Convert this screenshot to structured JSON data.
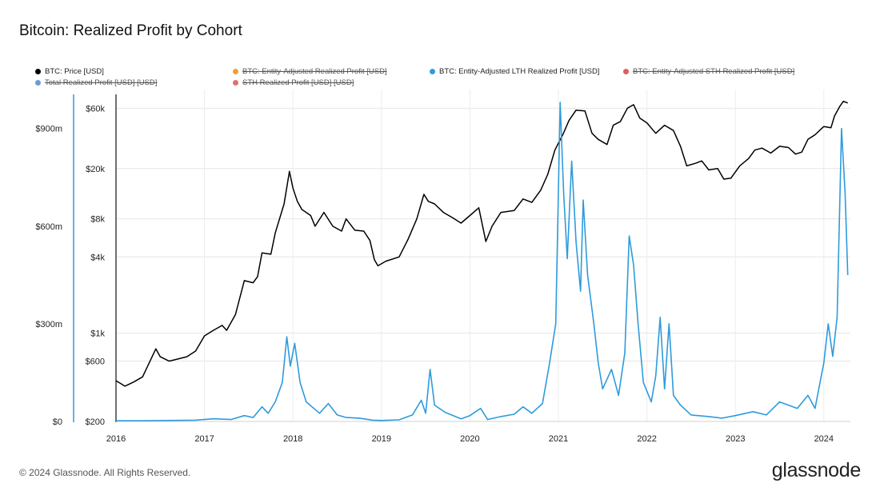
{
  "title": "Bitcoin: Realized Profit by Cohort",
  "footer": "© 2024 Glassnode. All Rights Reserved.",
  "brand": "glassnode",
  "legend": [
    {
      "label": "BTC: Price [USD]",
      "color": "#000000",
      "struck": false
    },
    {
      "label": "BTC: Entity-Adjusted Realized Profit [USD]",
      "color": "#f0a030",
      "struck": true
    },
    {
      "label": "BTC: Entity-Adjusted LTH Realized Profit [USD]",
      "color": "#2e9bdc",
      "struck": false
    },
    {
      "label": "BTC: Entity-Adjusted STH Realized Profit [USD]",
      "color": "#e05c5c",
      "struck": true
    },
    {
      "label": "Total Realized Profit [USD] [USD]",
      "color": "#6a9bd8",
      "struck": true
    },
    {
      "label": "STH Realized Profit [USD] [USD]",
      "color": "#e07070",
      "struck": true
    }
  ],
  "chart_data": {
    "type": "line",
    "title": "Bitcoin: Realized Profit by Cohort",
    "x_ticks": [
      "2016",
      "2017",
      "2018",
      "2019",
      "2020",
      "2021",
      "2022",
      "2023",
      "2024"
    ],
    "x_range": [
      2016.0,
      2024.3
    ],
    "left_axis": {
      "ticks": [
        "$0",
        "$300m",
        "$600m",
        "$900m"
      ],
      "tick_values": [
        0,
        300000000,
        600000000,
        900000000
      ],
      "range": [
        0,
        1000000000
      ]
    },
    "right_axis": {
      "scale": "log",
      "ticks": [
        "$200",
        "$600",
        "$1k",
        "$4k",
        "$8k",
        "$20k",
        "$60k"
      ],
      "tick_values": [
        200,
        600,
        1000,
        4000,
        8000,
        20000,
        60000
      ],
      "range": [
        200,
        75000
      ]
    },
    "grid": true,
    "legend_position": "top",
    "series": [
      {
        "name": "BTC: Price [USD]",
        "color": "#000000",
        "axis": "right",
        "points": [
          [
            2016.0,
            420
          ],
          [
            2016.05,
            400
          ],
          [
            2016.1,
            380
          ],
          [
            2016.2,
            410
          ],
          [
            2016.3,
            450
          ],
          [
            2016.45,
            750
          ],
          [
            2016.5,
            650
          ],
          [
            2016.6,
            600
          ],
          [
            2016.8,
            650
          ],
          [
            2016.9,
            720
          ],
          [
            2017.0,
            950
          ],
          [
            2017.1,
            1050
          ],
          [
            2017.2,
            1150
          ],
          [
            2017.25,
            1050
          ],
          [
            2017.35,
            1400
          ],
          [
            2017.45,
            2600
          ],
          [
            2017.55,
            2500
          ],
          [
            2017.6,
            2800
          ],
          [
            2017.65,
            4300
          ],
          [
            2017.75,
            4200
          ],
          [
            2017.8,
            6200
          ],
          [
            2017.9,
            10500
          ],
          [
            2017.96,
            19000
          ],
          [
            2018.0,
            14000
          ],
          [
            2018.05,
            11000
          ],
          [
            2018.1,
            9500
          ],
          [
            2018.2,
            8500
          ],
          [
            2018.25,
            7000
          ],
          [
            2018.35,
            9000
          ],
          [
            2018.45,
            7000
          ],
          [
            2018.55,
            6400
          ],
          [
            2018.6,
            8000
          ],
          [
            2018.7,
            6500
          ],
          [
            2018.8,
            6400
          ],
          [
            2018.87,
            5400
          ],
          [
            2018.92,
            3800
          ],
          [
            2018.96,
            3400
          ],
          [
            2019.05,
            3700
          ],
          [
            2019.2,
            4000
          ],
          [
            2019.3,
            5500
          ],
          [
            2019.4,
            8000
          ],
          [
            2019.48,
            12500
          ],
          [
            2019.53,
            11000
          ],
          [
            2019.6,
            10500
          ],
          [
            2019.7,
            9000
          ],
          [
            2019.8,
            8200
          ],
          [
            2019.9,
            7400
          ],
          [
            2020.0,
            8500
          ],
          [
            2020.1,
            9800
          ],
          [
            2020.18,
            5300
          ],
          [
            2020.25,
            7000
          ],
          [
            2020.35,
            9000
          ],
          [
            2020.5,
            9300
          ],
          [
            2020.6,
            11500
          ],
          [
            2020.7,
            10800
          ],
          [
            2020.8,
            13500
          ],
          [
            2020.88,
            18000
          ],
          [
            2020.96,
            28000
          ],
          [
            2021.05,
            37000
          ],
          [
            2021.12,
            48000
          ],
          [
            2021.2,
            58000
          ],
          [
            2021.3,
            57000
          ],
          [
            2021.38,
            38000
          ],
          [
            2021.45,
            34000
          ],
          [
            2021.55,
            31000
          ],
          [
            2021.62,
            44000
          ],
          [
            2021.7,
            47000
          ],
          [
            2021.78,
            60000
          ],
          [
            2021.85,
            64000
          ],
          [
            2021.92,
            50000
          ],
          [
            2022.0,
            46000
          ],
          [
            2022.1,
            38000
          ],
          [
            2022.2,
            44000
          ],
          [
            2022.3,
            40000
          ],
          [
            2022.38,
            30000
          ],
          [
            2022.45,
            21000
          ],
          [
            2022.55,
            22000
          ],
          [
            2022.62,
            23000
          ],
          [
            2022.7,
            19500
          ],
          [
            2022.8,
            20000
          ],
          [
            2022.87,
            16500
          ],
          [
            2022.95,
            16800
          ],
          [
            2023.05,
            21000
          ],
          [
            2023.15,
            24000
          ],
          [
            2023.22,
            28000
          ],
          [
            2023.3,
            29000
          ],
          [
            2023.4,
            26500
          ],
          [
            2023.5,
            30000
          ],
          [
            2023.6,
            29300
          ],
          [
            2023.68,
            26000
          ],
          [
            2023.75,
            27000
          ],
          [
            2023.82,
            34000
          ],
          [
            2023.9,
            37000
          ],
          [
            2024.0,
            43000
          ],
          [
            2024.08,
            42000
          ],
          [
            2024.12,
            52000
          ],
          [
            2024.18,
            62000
          ],
          [
            2024.22,
            68000
          ],
          [
            2024.27,
            66000
          ]
        ]
      },
      {
        "name": "BTC: Entity-Adjusted LTH Realized Profit [USD]",
        "color": "#2e9bdc",
        "axis": "left",
        "points": [
          [
            2016.0,
            2000000
          ],
          [
            2016.3,
            2000000
          ],
          [
            2016.6,
            3000000
          ],
          [
            2016.9,
            4000000
          ],
          [
            2017.1,
            8000000
          ],
          [
            2017.3,
            6000000
          ],
          [
            2017.45,
            18000000
          ],
          [
            2017.55,
            12000000
          ],
          [
            2017.65,
            45000000
          ],
          [
            2017.72,
            25000000
          ],
          [
            2017.8,
            60000000
          ],
          [
            2017.88,
            120000000
          ],
          [
            2017.93,
            260000000
          ],
          [
            2017.97,
            170000000
          ],
          [
            2018.02,
            240000000
          ],
          [
            2018.08,
            120000000
          ],
          [
            2018.15,
            60000000
          ],
          [
            2018.3,
            25000000
          ],
          [
            2018.4,
            55000000
          ],
          [
            2018.5,
            20000000
          ],
          [
            2018.6,
            12000000
          ],
          [
            2018.75,
            10000000
          ],
          [
            2018.9,
            4000000
          ],
          [
            2019.0,
            3000000
          ],
          [
            2019.2,
            5000000
          ],
          [
            2019.35,
            20000000
          ],
          [
            2019.45,
            65000000
          ],
          [
            2019.5,
            25000000
          ],
          [
            2019.55,
            160000000
          ],
          [
            2019.6,
            50000000
          ],
          [
            2019.72,
            28000000
          ],
          [
            2019.9,
            8000000
          ],
          [
            2020.0,
            18000000
          ],
          [
            2020.12,
            40000000
          ],
          [
            2020.2,
            6000000
          ],
          [
            2020.35,
            15000000
          ],
          [
            2020.5,
            22000000
          ],
          [
            2020.6,
            45000000
          ],
          [
            2020.7,
            25000000
          ],
          [
            2020.82,
            55000000
          ],
          [
            2020.9,
            180000000
          ],
          [
            2020.97,
            300000000
          ],
          [
            2021.02,
            980000000
          ],
          [
            2021.06,
            700000000
          ],
          [
            2021.1,
            500000000
          ],
          [
            2021.15,
            800000000
          ],
          [
            2021.2,
            550000000
          ],
          [
            2021.25,
            400000000
          ],
          [
            2021.28,
            680000000
          ],
          [
            2021.33,
            450000000
          ],
          [
            2021.4,
            300000000
          ],
          [
            2021.45,
            180000000
          ],
          [
            2021.5,
            100000000
          ],
          [
            2021.6,
            160000000
          ],
          [
            2021.68,
            80000000
          ],
          [
            2021.75,
            210000000
          ],
          [
            2021.8,
            570000000
          ],
          [
            2021.85,
            480000000
          ],
          [
            2021.9,
            300000000
          ],
          [
            2021.96,
            120000000
          ],
          [
            2022.05,
            60000000
          ],
          [
            2022.1,
            140000000
          ],
          [
            2022.15,
            320000000
          ],
          [
            2022.2,
            100000000
          ],
          [
            2022.25,
            300000000
          ],
          [
            2022.3,
            80000000
          ],
          [
            2022.38,
            50000000
          ],
          [
            2022.5,
            20000000
          ],
          [
            2022.7,
            15000000
          ],
          [
            2022.85,
            10000000
          ],
          [
            2023.0,
            18000000
          ],
          [
            2023.2,
            30000000
          ],
          [
            2023.35,
            20000000
          ],
          [
            2023.5,
            60000000
          ],
          [
            2023.7,
            40000000
          ],
          [
            2023.82,
            80000000
          ],
          [
            2023.9,
            40000000
          ],
          [
            2024.0,
            180000000
          ],
          [
            2024.05,
            300000000
          ],
          [
            2024.1,
            200000000
          ],
          [
            2024.15,
            320000000
          ],
          [
            2024.2,
            900000000
          ],
          [
            2024.24,
            700000000
          ],
          [
            2024.27,
            450000000
          ]
        ]
      }
    ]
  }
}
